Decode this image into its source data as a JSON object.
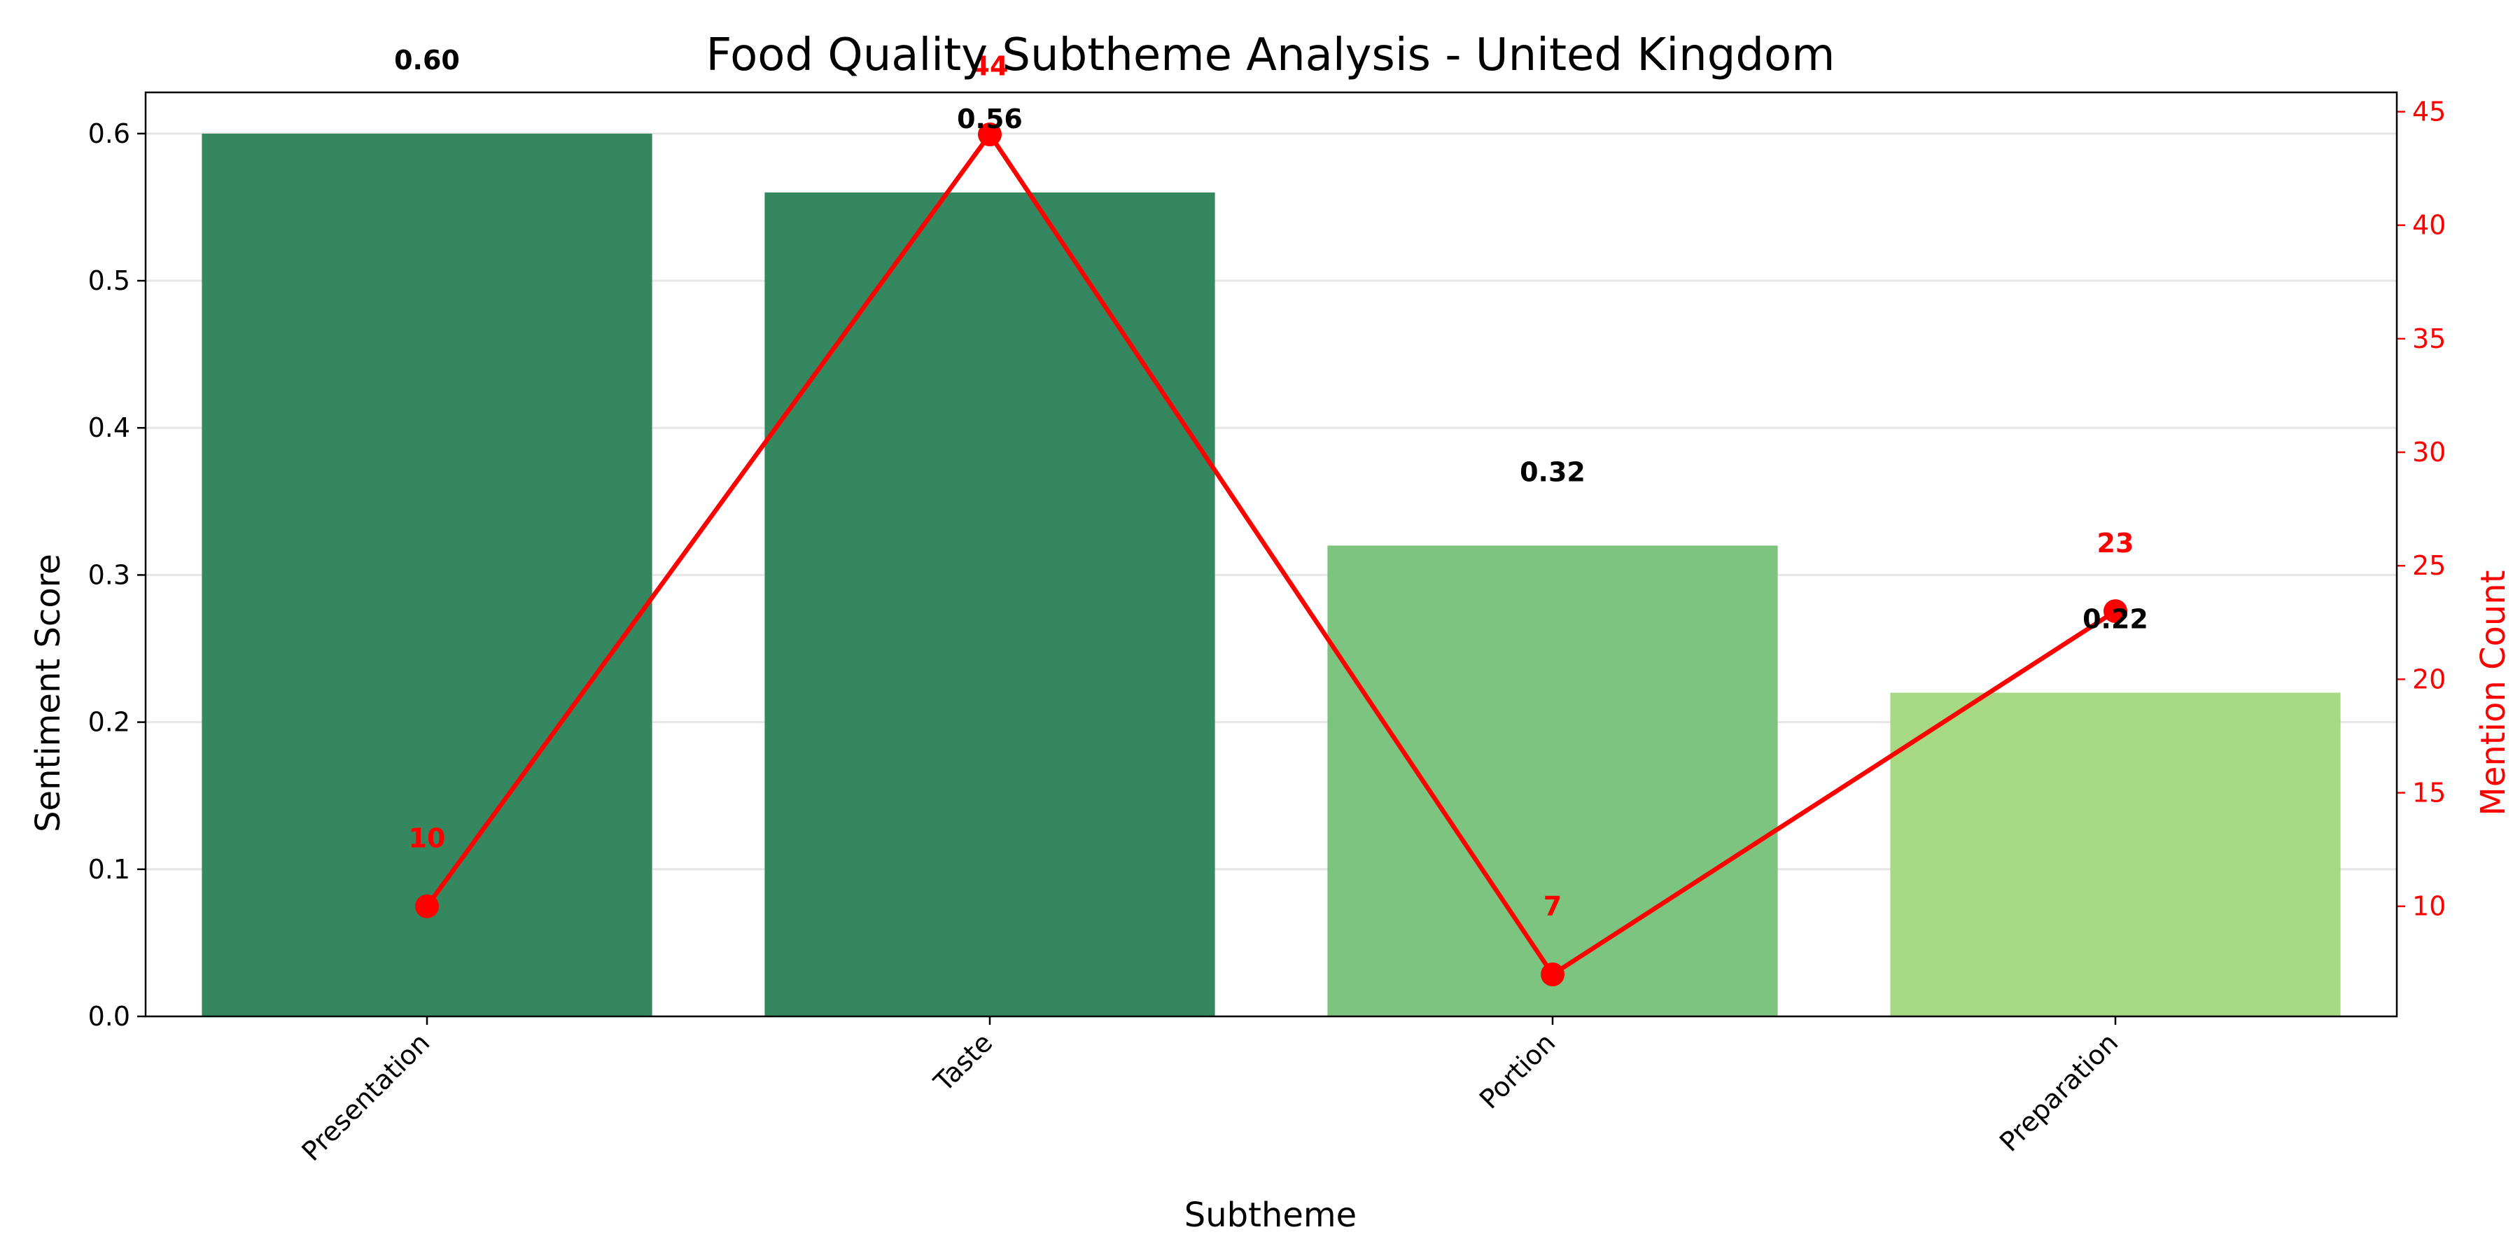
{
  "chart_data": {
    "type": "bar",
    "title": "Food Quality Subtheme Analysis - United Kingdom",
    "xlabel": "Subtheme",
    "ylabel": "Sentiment Score",
    "y2label": "Mention Count",
    "categories": [
      "Presentation",
      "Taste",
      "Portion",
      "Preparation"
    ],
    "series": [
      {
        "type": "bar",
        "values": [
          0.6,
          0.56,
          0.32,
          0.22
        ],
        "value_labels": [
          "0.60",
          "0.56",
          "0.32",
          "0.22"
        ],
        "colors": [
          "#35875f",
          "#35875f",
          "#7cc47f",
          "#a7d884"
        ]
      },
      {
        "type": "line",
        "axis": "right",
        "values": [
          10,
          44,
          7,
          23
        ],
        "value_labels": [
          "10",
          "44",
          "7",
          "23"
        ],
        "color": "#ff0000"
      }
    ],
    "ylim": [
      0,
      0.628
    ],
    "y2lim": [
      5.15,
      45.85
    ],
    "yticks": [
      "0.0",
      "0.1",
      "0.2",
      "0.3",
      "0.4",
      "0.5",
      "0.6"
    ],
    "y2ticks": [
      "10",
      "15",
      "20",
      "25",
      "30",
      "35",
      "40",
      "45"
    ],
    "grid": "horizontal"
  }
}
